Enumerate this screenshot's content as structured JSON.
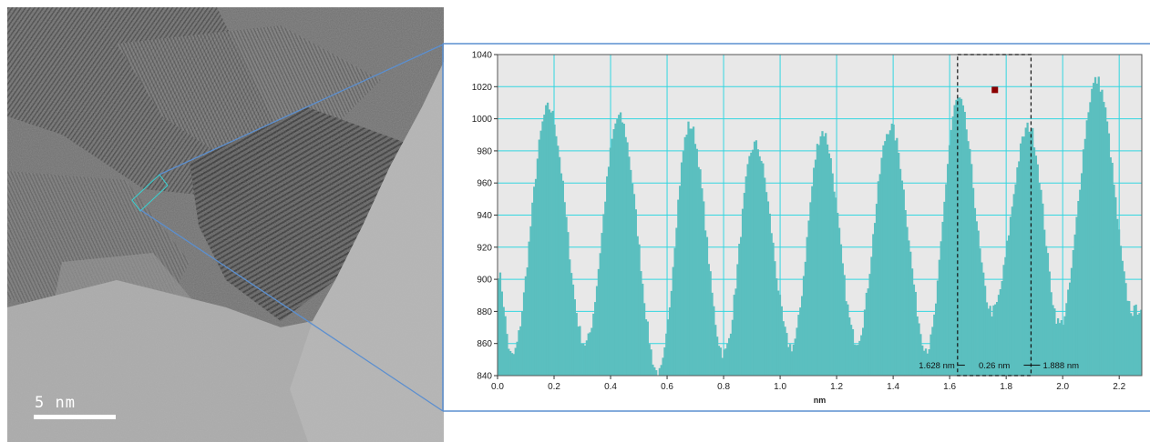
{
  "micrograph": {
    "scale_bar_label": "5 nm"
  },
  "colors": {
    "bar_fill": "#5bbfbf",
    "plot_background": "#e8e8e8",
    "grid": "#33d6e0",
    "connector": "#5b8fd0",
    "marker": "#8b0000"
  },
  "chart_data": {
    "type": "bar",
    "title": "",
    "xlabel": "nm",
    "ylabel": "",
    "xlim": [
      0.0,
      2.28
    ],
    "ylim": [
      840,
      1040
    ],
    "x_ticks": [
      "0.0",
      "0.2",
      "0.4",
      "0.6",
      "0.8",
      "1.0",
      "1.2",
      "1.4",
      "1.6",
      "1.8",
      "2.0",
      "2.2"
    ],
    "y_ticks": [
      "840",
      "860",
      "880",
      "900",
      "920",
      "940",
      "960",
      "980",
      "1000",
      "1020",
      "1040"
    ],
    "grid": true,
    "peaks": [
      {
        "x": 0.18,
        "y": 1007
      },
      {
        "x": 0.43,
        "y": 1001
      },
      {
        "x": 0.68,
        "y": 996
      },
      {
        "x": 0.91,
        "y": 984
      },
      {
        "x": 1.15,
        "y": 992
      },
      {
        "x": 1.39,
        "y": 995
      },
      {
        "x": 1.63,
        "y": 1012
      },
      {
        "x": 1.88,
        "y": 995
      },
      {
        "x": 2.12,
        "y": 1024
      }
    ],
    "valleys": [
      {
        "x": 0.0,
        "y": 905
      },
      {
        "x": 0.05,
        "y": 852
      },
      {
        "x": 0.31,
        "y": 860
      },
      {
        "x": 0.57,
        "y": 841
      },
      {
        "x": 0.8,
        "y": 854
      },
      {
        "x": 1.04,
        "y": 858
      },
      {
        "x": 1.27,
        "y": 862
      },
      {
        "x": 1.52,
        "y": 857
      },
      {
        "x": 1.75,
        "y": 880
      },
      {
        "x": 1.99,
        "y": 872
      },
      {
        "x": 2.25,
        "y": 880
      },
      {
        "x": 2.28,
        "y": 883
      }
    ],
    "selection": {
      "x_start": 1.628,
      "x_end": 1.888
    },
    "marker_point": {
      "x": 1.76,
      "y": 1018
    },
    "annotations": {
      "left": "1.628 nm",
      "middle": "0.26 nm",
      "right": "1.888 nm"
    }
  }
}
